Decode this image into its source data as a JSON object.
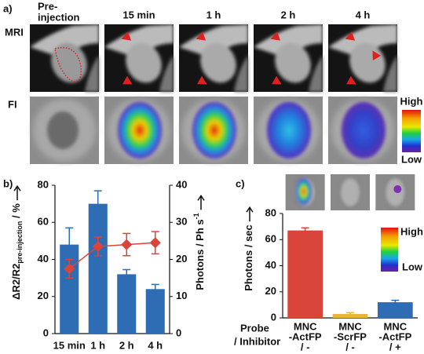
{
  "panel_a": {
    "label": "a)",
    "columns": [
      [
        "Pre-",
        "injection"
      ],
      [
        "15 min"
      ],
      [
        "1 h"
      ],
      [
        "2 h"
      ],
      [
        "4 h"
      ]
    ],
    "rows": [
      "MRI",
      "FI"
    ],
    "colorbar": {
      "high": "High",
      "low": "Low"
    }
  },
  "chart_data": [
    {
      "type": "bar",
      "panel_label": "b)",
      "categories": [
        "15 min",
        "1 h",
        "2 h",
        "4 h"
      ],
      "y_label": "ΔR2/R2",
      "y_label_sub": "pre-injection",
      "y_label_unit": " / %",
      "y2_label": "Photons / Ph s",
      "y2_label_sup": "-1",
      "ylim": [
        0,
        80
      ],
      "yticks": [
        0,
        20,
        40,
        60,
        80
      ],
      "y2lim": [
        0,
        40
      ],
      "y2ticks": [
        0,
        10,
        20,
        30,
        40
      ],
      "series": [
        {
          "type": "bar",
          "color": "#2e6db4",
          "values": [
            48,
            70,
            32,
            24
          ],
          "errors": [
            9,
            7,
            2.5,
            2.5
          ]
        },
        {
          "type": "line",
          "axis": "y2",
          "color": "#d9453a",
          "values": [
            17.5,
            23.5,
            24,
            24.5
          ],
          "errors": [
            2.5,
            2.5,
            3,
            3
          ]
        }
      ]
    },
    {
      "type": "bar",
      "panel_label": "c)",
      "categories": [
        [
          "MNC",
          "-ActFP",
          "/ -"
        ],
        [
          "MNC",
          "-ScrFP",
          "/ -"
        ],
        [
          "MNC",
          "-ActFP",
          "/ +"
        ]
      ],
      "row_label": [
        "Probe",
        "/ Inhibitor"
      ],
      "y_label": "Photons / sec",
      "ylim": [
        0,
        80
      ],
      "yticks": [
        0,
        20,
        40,
        60,
        80
      ],
      "colorbar": {
        "high": "High",
        "low": "Low"
      },
      "series": [
        {
          "type": "bar",
          "colors": [
            "#d9453a",
            "#e8b53a",
            "#2e6db4"
          ],
          "values": [
            67,
            3,
            12
          ],
          "errors": [
            2,
            1,
            1.5
          ]
        }
      ]
    }
  ]
}
